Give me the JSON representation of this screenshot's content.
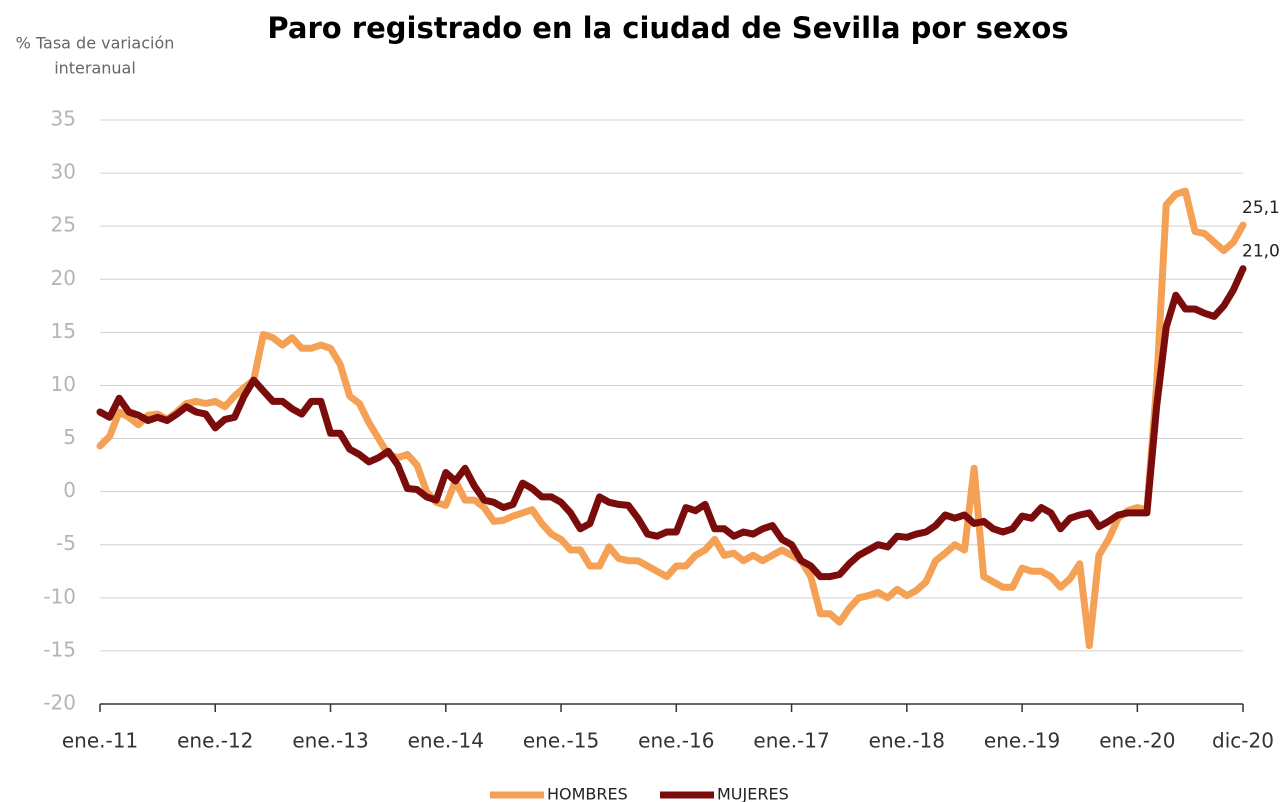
{
  "chart_data": {
    "type": "line",
    "title": "Paro registrado en la ciudad de Sevilla por sexos",
    "y_label": [
      "% Tasa de variación",
      "interanual"
    ],
    "categories": [
      "ene.-11",
      null,
      null,
      null,
      null,
      null,
      null,
      null,
      null,
      null,
      null,
      null,
      "ene.-12",
      null,
      null,
      null,
      null,
      null,
      null,
      null,
      null,
      null,
      null,
      null,
      "ene.-13",
      null,
      null,
      null,
      null,
      null,
      null,
      null,
      null,
      null,
      null,
      null,
      "ene.-14",
      null,
      null,
      null,
      null,
      null,
      null,
      null,
      null,
      null,
      null,
      null,
      "ene.-15",
      null,
      null,
      null,
      null,
      null,
      null,
      null,
      null,
      null,
      null,
      null,
      "ene.-16",
      null,
      null,
      null,
      null,
      null,
      null,
      null,
      null,
      null,
      null,
      null,
      "ene.-17",
      null,
      null,
      null,
      null,
      null,
      null,
      null,
      null,
      null,
      null,
      null,
      "ene.-18",
      null,
      null,
      null,
      null,
      null,
      null,
      null,
      null,
      null,
      null,
      null,
      "ene.-19",
      null,
      null,
      null,
      null,
      null,
      null,
      null,
      null,
      null,
      null,
      null,
      "ene.-20",
      null,
      null,
      null,
      null,
      null,
      null,
      null,
      null,
      null,
      null,
      "dic-20"
    ],
    "series": [
      {
        "name": "HOMBRES",
        "color": "#f4a055",
        "end_label": "25,1",
        "values": [
          4.3,
          5.2,
          7.5,
          7.0,
          6.3,
          7.2,
          7.3,
          6.8,
          7.5,
          8.3,
          8.5,
          8.3,
          8.5,
          8.0,
          9.0,
          9.8,
          10.5,
          14.8,
          14.5,
          13.8,
          14.5,
          13.5,
          13.5,
          13.8,
          13.5,
          12.0,
          9.0,
          8.3,
          6.5,
          5.0,
          3.5,
          3.2,
          3.5,
          2.5,
          0.0,
          -1.0,
          -1.3,
          1.0,
          -0.8,
          -0.8,
          -1.5,
          -2.8,
          -2.7,
          -2.3,
          -2.0,
          -1.7,
          -3.0,
          -4.0,
          -4.5,
          -5.5,
          -5.5,
          -7.0,
          -7.0,
          -5.2,
          -6.3,
          -6.5,
          -6.5,
          -7.0,
          -7.5,
          -8.0,
          -7.0,
          -7.0,
          -6.0,
          -5.5,
          -4.5,
          -6.0,
          -5.8,
          -6.5,
          -6.0,
          -6.5,
          -6.0,
          -5.5,
          -6.0,
          -6.5,
          -8.0,
          -11.5,
          -11.5,
          -12.3,
          -11.0,
          -10.0,
          -9.8,
          -9.5,
          -10.0,
          -9.2,
          -9.8,
          -9.3,
          -8.5,
          -6.5,
          -5.8,
          -5.0,
          -5.5,
          2.2,
          -8.0,
          -8.5,
          -9.0,
          -9.0,
          -7.2,
          -7.5,
          -7.5,
          -8.0,
          -9.0,
          -8.2,
          -6.8,
          -14.5,
          -6.0,
          -4.5,
          -2.5,
          -1.8,
          -1.5,
          -1.7,
          10.0,
          27.0,
          28.0,
          28.3,
          24.5,
          24.3,
          23.5,
          22.7,
          23.5,
          25.1
        ]
      },
      {
        "name": "MUJERES",
        "color": "#7b0c0c",
        "end_label": "21,0",
        "values": [
          7.5,
          7.0,
          8.8,
          7.5,
          7.2,
          6.7,
          7.0,
          6.7,
          7.3,
          8.0,
          7.5,
          7.3,
          6.0,
          6.8,
          7.0,
          9.0,
          10.5,
          9.5,
          8.5,
          8.5,
          7.8,
          7.3,
          8.5,
          8.5,
          5.5,
          5.5,
          4.0,
          3.5,
          2.8,
          3.2,
          3.8,
          2.5,
          0.3,
          0.2,
          -0.5,
          -0.8,
          1.8,
          1.0,
          2.2,
          0.5,
          -0.8,
          -1.0,
          -1.5,
          -1.2,
          0.8,
          0.3,
          -0.5,
          -0.5,
          -1.0,
          -2.0,
          -3.5,
          -3.0,
          -0.5,
          -1.0,
          -1.2,
          -1.3,
          -2.5,
          -4.0,
          -4.2,
          -3.8,
          -3.8,
          -1.5,
          -1.8,
          -1.2,
          -3.5,
          -3.5,
          -4.2,
          -3.8,
          -4.0,
          -3.5,
          -3.2,
          -4.5,
          -5.0,
          -6.5,
          -7.0,
          -8.0,
          -8.0,
          -7.8,
          -6.8,
          -6.0,
          -5.5,
          -5.0,
          -5.2,
          -4.2,
          -4.3,
          -4.0,
          -3.8,
          -3.2,
          -2.2,
          -2.5,
          -2.2,
          -3.0,
          -2.8,
          -3.5,
          -3.8,
          -3.5,
          -2.3,
          -2.5,
          -1.5,
          -2.0,
          -3.5,
          -2.5,
          -2.2,
          -2.0,
          -3.3,
          -2.8,
          -2.2,
          -2.0,
          -2.0,
          -2.0,
          8.0,
          15.5,
          18.5,
          17.2,
          17.2,
          16.8,
          16.5,
          17.5,
          19.0,
          21.0
        ]
      }
    ],
    "ylim": [
      -20,
      35
    ],
    "yticks": [
      -20,
      -15,
      -10,
      -5,
      0,
      5,
      10,
      15,
      20,
      25,
      30,
      35
    ],
    "grid": true,
    "legend": "bottom"
  }
}
